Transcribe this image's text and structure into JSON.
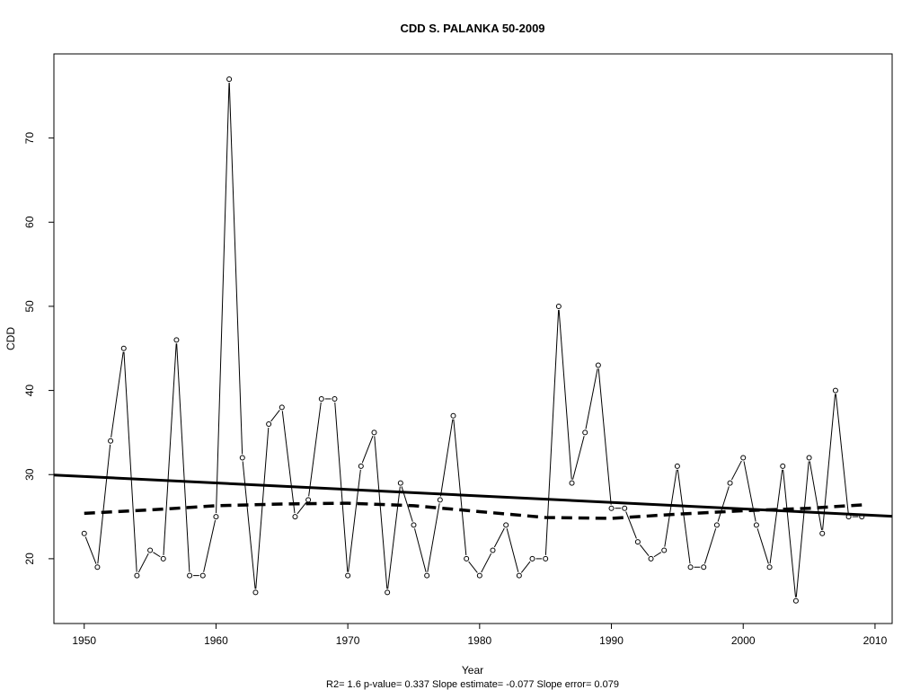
{
  "chart_data": {
    "type": "line",
    "title": "CDD    S. PALANKA 50-2009",
    "xlabel": "Year",
    "ylabel": "CDD",
    "xlim": [
      1947.7,
      2011.3
    ],
    "ylim": [
      12.3,
      80.0
    ],
    "xticks": [
      1950,
      1960,
      1970,
      1980,
      1990,
      2000,
      2010
    ],
    "yticks": [
      20,
      30,
      40,
      50,
      60,
      70
    ],
    "grid": false,
    "series": [
      {
        "style": "points-and-lines",
        "x": [
          1950,
          1951,
          1952,
          1953,
          1954,
          1955,
          1956,
          1957,
          1958,
          1959,
          1960,
          1961,
          1962,
          1963,
          1964,
          1965,
          1966,
          1967,
          1968,
          1969,
          1970,
          1971,
          1972,
          1973,
          1974,
          1975,
          1976,
          1977,
          1978,
          1979,
          1980,
          1981,
          1982,
          1983,
          1984,
          1985,
          1986,
          1987,
          1988,
          1989,
          1990,
          1991,
          1992,
          1993,
          1994,
          1995,
          1996,
          1997,
          1998,
          1999,
          2000,
          2001,
          2002,
          2003,
          2004,
          2005,
          2006,
          2007,
          2008,
          2009
        ],
        "values": [
          23,
          19,
          34,
          45,
          18,
          21,
          20,
          46,
          18,
          18,
          25,
          77,
          32,
          16,
          36,
          38,
          25,
          27,
          39,
          39,
          18,
          31,
          35,
          16,
          29,
          24,
          18,
          27,
          37,
          20,
          18,
          21,
          24,
          18,
          20,
          20,
          50,
          29,
          35,
          43,
          26,
          26,
          22,
          20,
          21,
          31,
          19,
          19,
          24,
          29,
          32,
          24,
          19,
          31,
          15,
          32,
          23,
          40,
          25,
          25
        ]
      },
      {
        "style": "solid-thick",
        "x": [
          1947.7,
          2011.3
        ],
        "values": [
          29.95,
          25.05
        ]
      },
      {
        "style": "dashed-thick",
        "x": [
          1950,
          1955,
          1960,
          1965,
          1970,
          1975,
          1980,
          1985,
          1990,
          1995,
          2000,
          2005,
          2009
        ],
        "values": [
          25.4,
          25.8,
          26.3,
          26.5,
          26.6,
          26.3,
          25.6,
          24.9,
          24.8,
          25.3,
          25.7,
          26.0,
          26.4
        ]
      }
    ],
    "stats_line": "R2= 1.6  p-value= 0.337  Slope estimate= -0.077  Slope error= 0.079"
  }
}
